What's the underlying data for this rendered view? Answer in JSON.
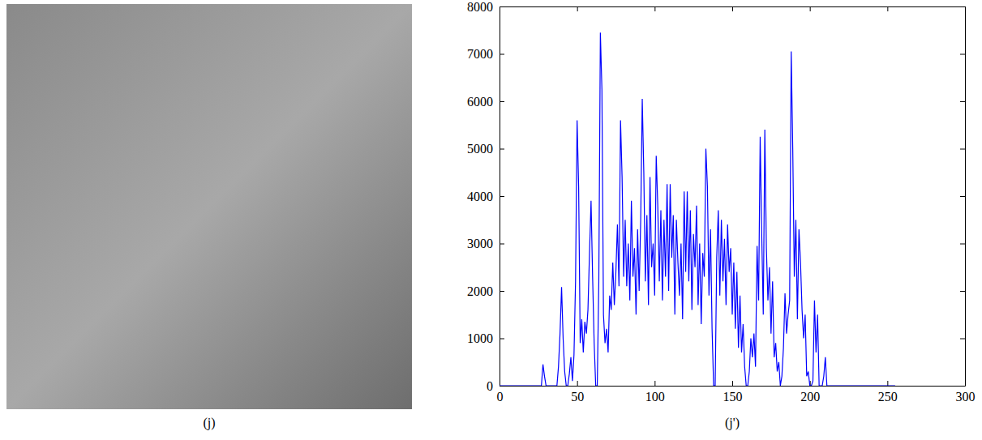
{
  "image": {
    "caption": "(j)"
  },
  "chart_data": {
    "type": "line",
    "xlabel": "(j')",
    "color": "#0000ff",
    "x": [
      0,
      1,
      2,
      3,
      4,
      5,
      6,
      7,
      8,
      9,
      10,
      11,
      12,
      13,
      14,
      15,
      16,
      17,
      18,
      19,
      20,
      21,
      22,
      23,
      24,
      25,
      26,
      27,
      28,
      29,
      30,
      31,
      32,
      33,
      34,
      35,
      36,
      37,
      38,
      39,
      40,
      41,
      42,
      43,
      44,
      45,
      46,
      47,
      48,
      49,
      50,
      51,
      52,
      53,
      54,
      55,
      56,
      57,
      58,
      59,
      60,
      61,
      62,
      63,
      64,
      65,
      66,
      67,
      68,
      69,
      70,
      71,
      72,
      73,
      74,
      75,
      76,
      77,
      78,
      79,
      80,
      81,
      82,
      83,
      84,
      85,
      86,
      87,
      88,
      89,
      90,
      91,
      92,
      93,
      94,
      95,
      96,
      97,
      98,
      99,
      100,
      101,
      102,
      103,
      104,
      105,
      106,
      107,
      108,
      109,
      110,
      111,
      112,
      113,
      114,
      115,
      116,
      117,
      118,
      119,
      120,
      121,
      122,
      123,
      124,
      125,
      126,
      127,
      128,
      129,
      130,
      131,
      132,
      133,
      134,
      135,
      136,
      137,
      138,
      139,
      140,
      141,
      142,
      143,
      144,
      145,
      146,
      147,
      148,
      149,
      150,
      151,
      152,
      153,
      154,
      155,
      156,
      157,
      158,
      159,
      160,
      161,
      162,
      163,
      164,
      165,
      166,
      167,
      168,
      169,
      170,
      171,
      172,
      173,
      174,
      175,
      176,
      177,
      178,
      179,
      180,
      181,
      182,
      183,
      184,
      185,
      186,
      187,
      188,
      189,
      190,
      191,
      192,
      193,
      194,
      195,
      196,
      197,
      198,
      199,
      200,
      201,
      202,
      203,
      204,
      205,
      206,
      207,
      208,
      209,
      210,
      211,
      212,
      213,
      214,
      215,
      216,
      217,
      218,
      219,
      220,
      221,
      222,
      223,
      224,
      225,
      226,
      227,
      228,
      229,
      230,
      231,
      232,
      233,
      234,
      235,
      236,
      237,
      238,
      239,
      240,
      241,
      242,
      243,
      244,
      245,
      246,
      247,
      248,
      249,
      250,
      251,
      252,
      253,
      254,
      255
    ],
    "values": [
      0,
      0,
      0,
      0,
      0,
      0,
      0,
      0,
      0,
      0,
      0,
      0,
      0,
      0,
      0,
      0,
      0,
      0,
      0,
      0,
      0,
      0,
      0,
      0,
      0,
      0,
      0,
      0,
      450,
      200,
      0,
      0,
      0,
      0,
      0,
      0,
      0,
      0,
      400,
      1100,
      2080,
      1000,
      300,
      0,
      0,
      250,
      600,
      100,
      650,
      2200,
      5600,
      4200,
      900,
      1400,
      700,
      1350,
      1100,
      1600,
      2800,
      3900,
      2300,
      900,
      0,
      0,
      2200,
      7450,
      6250,
      1500,
      900,
      1200,
      700,
      1900,
      1600,
      2600,
      1700,
      2400,
      3400,
      2100,
      5600,
      4400,
      2300,
      3500,
      2100,
      3000,
      1800,
      3900,
      2300,
      2900,
      1500,
      3300,
      2000,
      3500,
      6050,
      4500,
      2200,
      3600,
      1700,
      4400,
      2500,
      3000,
      1900,
      4850,
      3800,
      2200,
      3700,
      1800,
      3500,
      2300,
      4250,
      2000,
      4250,
      2700,
      3600,
      1500,
      3500,
      2600,
      1900,
      3000,
      1400,
      4100,
      2400,
      4100,
      2200,
      3700,
      1600,
      3200,
      2500,
      3800,
      1700,
      3000,
      1300,
      2800,
      2300,
      5000,
      4200,
      1900,
      3300,
      1200,
      0,
      0,
      2700,
      3700,
      1900,
      3500,
      2200,
      3100,
      1700,
      3400,
      2400,
      2900,
      1500,
      2600,
      1200,
      2400,
      800,
      1900,
      700,
      1300,
      400,
      0,
      0,
      300,
      1000,
      600,
      1100,
      400,
      2950,
      1800,
      5250,
      3200,
      1500,
      5400,
      2900,
      1800,
      2500,
      1100,
      2200,
      600,
      900,
      300,
      500,
      0,
      200,
      800,
      1950,
      1100,
      1500,
      1800,
      7050,
      5000,
      2300,
      3500,
      1400,
      3300,
      2600,
      1600,
      1000,
      1500,
      200,
      300,
      0,
      0,
      100,
      1800,
      700,
      1500,
      0,
      0,
      0,
      200,
      600,
      0,
      0,
      0,
      0,
      0,
      0,
      0,
      0,
      0,
      0,
      0,
      0,
      0,
      0,
      0,
      0,
      0,
      0,
      0,
      0,
      0,
      0,
      0,
      0,
      0,
      0,
      0,
      0,
      0,
      0,
      0,
      0,
      0,
      0,
      0,
      0,
      0,
      0,
      0,
      0,
      0,
      0,
      0,
      0,
      0
    ],
    "xlim": [
      0,
      300
    ],
    "xticks": [
      0,
      50,
      100,
      150,
      200,
      250,
      300
    ],
    "ylim": [
      0,
      8000
    ],
    "yticks": [
      0,
      1000,
      2000,
      3000,
      4000,
      5000,
      6000,
      7000,
      8000
    ]
  }
}
